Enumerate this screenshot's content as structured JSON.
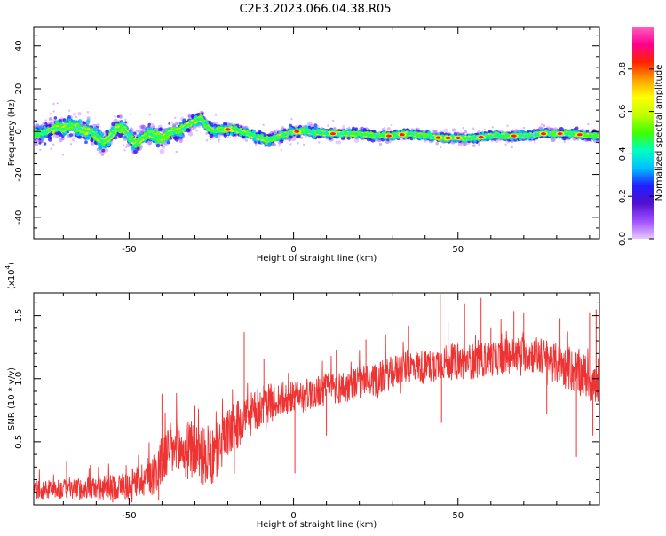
{
  "title": "C2E3.2023.066.04.38.R05",
  "colors": {
    "snr_line": "#ee3333",
    "frame": "#000000",
    "background": "#ffffff"
  },
  "chart_data": [
    {
      "type": "heatmap",
      "name": "spectrogram",
      "xlabel": "Height of straight line (km)",
      "ylabel": "Frequency (Hz)",
      "xlim": [
        -79,
        93
      ],
      "ylim": [
        -50,
        49
      ],
      "xticks": [
        -50,
        0,
        50
      ],
      "yticks": [
        -40,
        -20,
        0,
        20,
        40
      ],
      "colorbar": {
        "label": "Normalized spectral amplitude",
        "range": [
          0,
          1
        ],
        "ticks": [
          "0.0",
          "0.2",
          "0.4",
          "0.6",
          "0.8"
        ],
        "tick_values": [
          0,
          0.2,
          0.4,
          0.6,
          0.8
        ],
        "colormap": [
          "#e8c8ff",
          "#a050ff",
          "#5010d0",
          "#2020ff",
          "#00c0ff",
          "#00ffc0",
          "#40ff00",
          "#c0ff00",
          "#ffff00",
          "#ffa000",
          "#ff2000",
          "#ff0090",
          "#ff60c0"
        ]
      },
      "ridge": {
        "x": [
          -79,
          -75,
          -72,
          -70,
          -68,
          -65,
          -62,
          -60,
          -58,
          -56,
          -54,
          -52,
          -50,
          -48,
          -46,
          -44,
          -42,
          -40,
          -38,
          -36,
          -34,
          -32,
          -30,
          -28,
          -26,
          -24,
          -22,
          -20,
          -18,
          -16,
          -14,
          -12,
          -10,
          -8,
          -6,
          -4,
          -2,
          0,
          5,
          10,
          15,
          20,
          25,
          30,
          35,
          40,
          45,
          50,
          55,
          60,
          65,
          70,
          75,
          80,
          85,
          90,
          93
        ],
        "y": [
          -1,
          0,
          2,
          1,
          3,
          1,
          0,
          -2,
          -5,
          -3,
          1,
          2,
          -2,
          -6,
          -3,
          -1,
          -2,
          -3,
          -1,
          0,
          1,
          3,
          5,
          6,
          2,
          0,
          1,
          1,
          1,
          0,
          -1,
          -2,
          -3,
          -4,
          -3,
          -2,
          -1,
          0,
          0,
          -1,
          -1,
          -1,
          -2,
          -2,
          -1,
          -2,
          -3,
          -3,
          -3,
          -2,
          -2,
          -2,
          -1,
          -1,
          -1,
          -2,
          -2
        ]
      },
      "spread": {
        "x": [
          -79,
          -60,
          -40,
          -30,
          -20,
          -10,
          0,
          30,
          60,
          93
        ],
        "y": [
          5,
          6,
          5,
          4,
          3,
          3,
          3,
          2.5,
          2.5,
          2.5
        ]
      },
      "hot_spots_x": [
        -20,
        1,
        12,
        29,
        33,
        44,
        47,
        50,
        57,
        67,
        76,
        81,
        87
      ]
    },
    {
      "type": "line",
      "name": "snr",
      "xlabel": "Height of straight line (km)",
      "ylabel": "SNR (10 * v/v)",
      "multiplier_label": "(x10",
      "multiplier_exp": "4",
      "multiplier_close": ")",
      "xlim": [
        -79,
        93
      ],
      "ylim": [
        0,
        16800
      ],
      "xticks": [
        -50,
        0,
        50
      ],
      "yticks": [
        5000,
        10000,
        15000
      ],
      "ytick_labels": [
        "0.5",
        "1.0",
        "1.5"
      ],
      "trend": {
        "x": [
          -79,
          -60,
          -50,
          -42,
          -40,
          -38,
          -30,
          -25,
          -20,
          -15,
          -10,
          -5,
          0,
          5,
          10,
          15,
          20,
          25,
          30,
          35,
          40,
          45,
          50,
          55,
          60,
          65,
          70,
          75,
          80,
          85,
          88,
          90,
          92,
          93
        ],
        "y": [
          1200,
          1300,
          1500,
          2600,
          3500,
          4300,
          4300,
          3500,
          5700,
          6700,
          7800,
          8300,
          8400,
          8800,
          9200,
          9300,
          9700,
          9900,
          10500,
          11000,
          10900,
          11300,
          11300,
          11400,
          11600,
          11800,
          12000,
          11800,
          11200,
          10600,
          10300,
          10000,
          9300,
          7500
        ]
      },
      "noise": {
        "x": [
          -79,
          -60,
          -50,
          -45,
          -40,
          -35,
          -25,
          -20,
          -10,
          0,
          10,
          30,
          50,
          70,
          80,
          90,
          93
        ],
        "y": [
          700,
          900,
          1100,
          1500,
          2000,
          2300,
          2300,
          2000,
          1600,
          1300,
          1300,
          1300,
          1400,
          1400,
          1600,
          1800,
          1800
        ]
      },
      "spikes": {
        "x": [
          -69,
          -40,
          -30,
          -15,
          -9,
          0,
          13,
          22,
          35,
          44.6,
          47,
          52,
          57,
          60,
          67,
          70,
          81,
          88,
          90,
          92,
          93
        ],
        "y": [
          3500,
          8800,
          7900,
          13700,
          11600,
          9500,
          12300,
          13100,
          14200,
          16700,
          14500,
          15900,
          16400,
          14000,
          15300,
          15200,
          14800,
          16100,
          15200,
          15500,
          800
        ]
      },
      "dips": {
        "x": [
          0.4,
          -55,
          -41,
          -18,
          10,
          45,
          77,
          86,
          91
        ],
        "y": [
          2500,
          200,
          400,
          2500,
          5500,
          6500,
          7200,
          3800,
          5500
        ]
      }
    }
  ]
}
